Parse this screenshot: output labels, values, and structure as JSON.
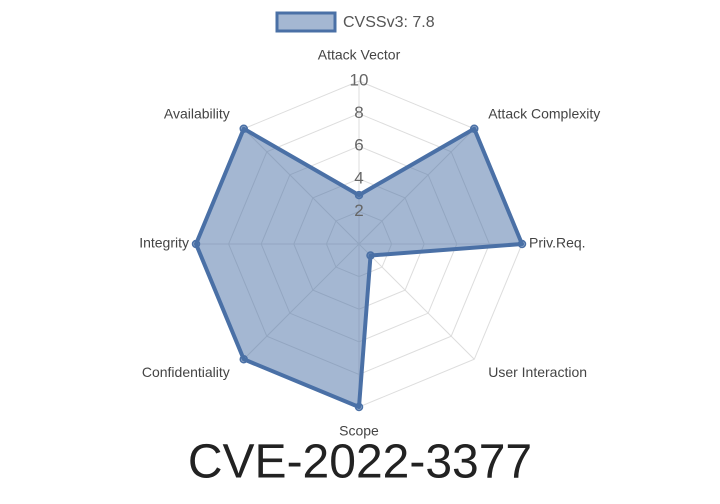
{
  "chart_data": {
    "type": "radar",
    "title": "CVE-2022-3377",
    "categories": [
      "Attack Vector",
      "Attack Complexity",
      "Priv.Req.",
      "User Interaction",
      "Scope",
      "Confidentiality",
      "Integrity",
      "Availability"
    ],
    "series": [
      {
        "name": "CVSSv3: 7.8",
        "color": "#4a70a6",
        "values": [
          3,
          10,
          10,
          1,
          10,
          10,
          10,
          10
        ]
      }
    ],
    "rlim": [
      0,
      10
    ],
    "rticks": [
      2,
      4,
      6,
      8,
      10
    ],
    "grid": true,
    "legend": "top"
  }
}
